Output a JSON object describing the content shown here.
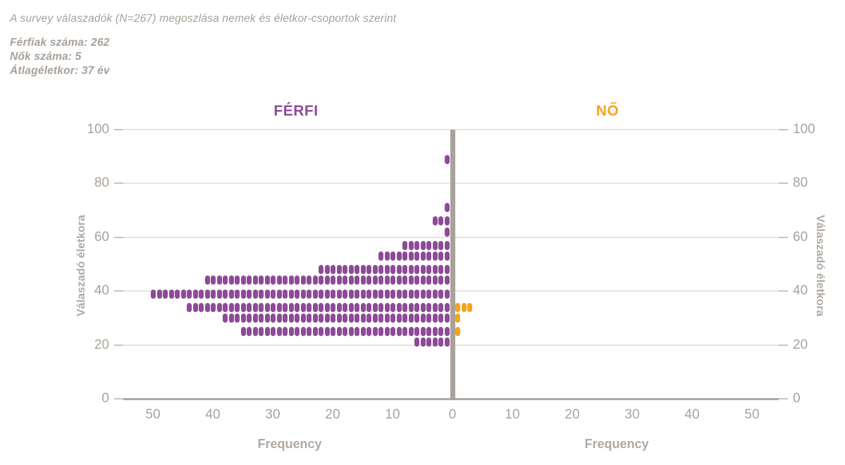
{
  "header": {
    "title": "A survey válaszadók (N=267) megoszlása nemek és életkor-csoportok szerint",
    "stats": [
      "Férfiak száma: 262",
      "Nők száma: 5",
      "Átlagéletkor: 37 év"
    ]
  },
  "chart_data": {
    "type": "bar",
    "subtype": "population-pyramid-dot-plot",
    "title": "A survey válaszadók (N=267) megoszlása nemek és életkor-csoportok szerint",
    "total_n": 267,
    "ages": [
      89,
      71,
      66,
      62,
      57,
      53,
      48,
      44,
      39,
      34,
      30,
      25,
      21
    ],
    "series": [
      {
        "name": "FÉRFI",
        "side": "left",
        "color": "#8d4b97",
        "total": 262,
        "values": [
          1,
          1,
          3,
          1,
          8,
          12,
          22,
          41,
          50,
          44,
          38,
          35,
          6
        ]
      },
      {
        "name": "NŐ",
        "side": "right",
        "color": "#f4a41e",
        "total": 5,
        "values": [
          0,
          0,
          0,
          0,
          0,
          0,
          0,
          0,
          0,
          3,
          1,
          1,
          0
        ]
      }
    ],
    "ylabel_left": "Válaszadó életkora",
    "ylabel_right": "Válaszadó életkora",
    "xlabel_left": "Frequency",
    "xlabel_right": "Frequency",
    "ylim": [
      0,
      100
    ],
    "y_ticks": [
      0,
      20,
      40,
      60,
      80,
      100
    ],
    "x_ticks_left": [
      50,
      40,
      30,
      20,
      10,
      0
    ],
    "x_ticks_right": [
      10,
      20,
      30,
      40,
      50
    ],
    "grid": true,
    "legend_position": "panel-titles-top",
    "colors": {
      "male": "#8d4b97",
      "female": "#f4a41e",
      "text_gray": "#a8a099",
      "tick_text": "#aaa29c",
      "gridline": "#e7e4e1",
      "axis_line": "#b1a9a3",
      "center_bar": "#a9a19b"
    }
  }
}
